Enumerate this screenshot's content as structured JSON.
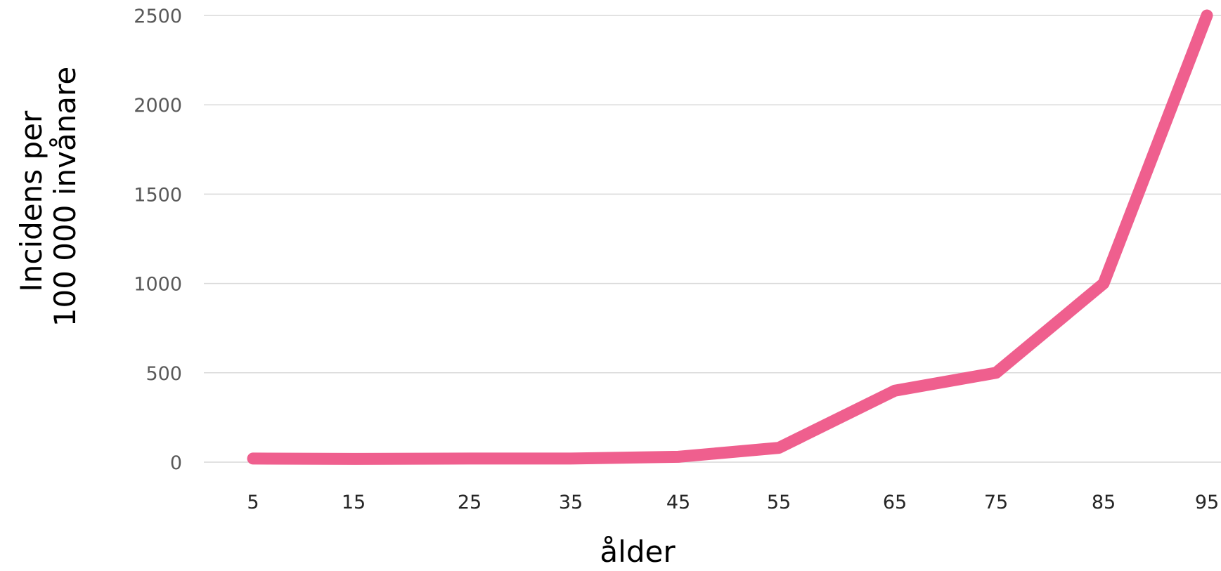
{
  "chart_data": {
    "type": "line",
    "title": "",
    "xlabel": "ålder",
    "ylabel_lines": [
      "Incidens per",
      "100 000 invånare"
    ],
    "x_tick_labels": [
      "5",
      "15",
      "25",
      "35",
      "45",
      "55",
      "65",
      "75",
      "85",
      "95"
    ],
    "y_tick_labels": [
      "0",
      "500",
      "1000",
      "1500",
      "2000",
      "2500"
    ],
    "ylim": [
      0,
      2500
    ],
    "grid": true,
    "line_color": "#EF5F8E",
    "series": [
      {
        "x": [
          5,
          15,
          25,
          35,
          45,
          55,
          65,
          75,
          85,
          95
        ],
        "values": [
          20,
          18,
          20,
          20,
          30,
          80,
          400,
          500,
          1000,
          2500
        ]
      }
    ]
  }
}
